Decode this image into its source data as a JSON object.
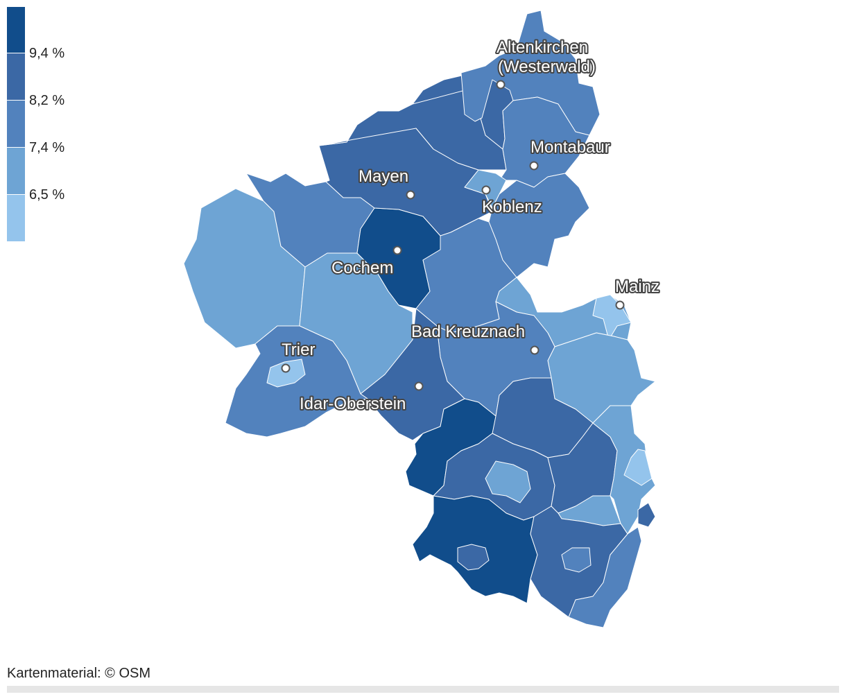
{
  "colors": {
    "level1": "#94c4ec",
    "level2": "#6ea4d4",
    "level3": "#5282bd",
    "level4": "#3b68a5",
    "level5": "#114d8b",
    "border": "#ffffff"
  },
  "legend": {
    "ticks": [
      "9,4 %",
      "8,2 %",
      "7,4 %",
      "6,5 %"
    ]
  },
  "cities": {
    "altenkirchen_line1": "Altenkirchen",
    "altenkirchen_line2": "(Westerwald)",
    "montabaur": "Montabaur",
    "mayen": "Mayen",
    "koblenz": "Koblenz",
    "cochem": "Cochem",
    "mainz": "Mainz",
    "bad_kreuznach": "Bad Kreuznach",
    "trier": "Trier",
    "idar_oberstein": "Idar-Oberstein"
  },
  "attribution": "Kartenmaterial: © OSM"
}
